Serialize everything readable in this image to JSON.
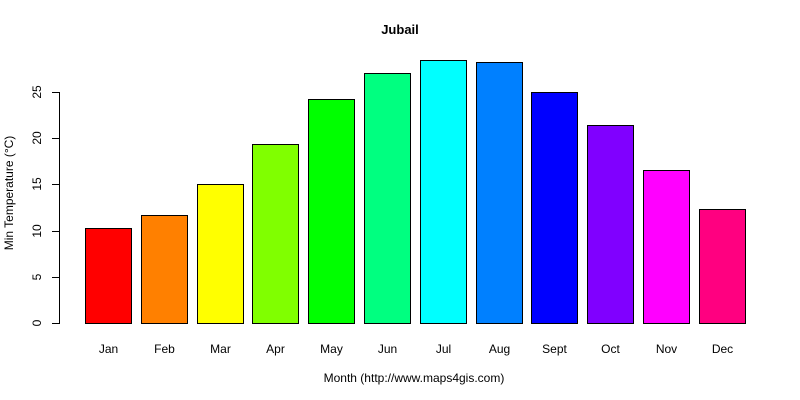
{
  "chart_data": {
    "type": "bar",
    "title": "Jubail",
    "xlabel": "Month (http://www.maps4gis.com)",
    "ylabel": "Min Temperature (°C)",
    "categories": [
      "Jan",
      "Feb",
      "Mar",
      "Apr",
      "May",
      "Jun",
      "Jul",
      "Aug",
      "Sept",
      "Oct",
      "Nov",
      "Dec"
    ],
    "values": [
      10.3,
      11.7,
      15.0,
      19.4,
      24.2,
      27.1,
      28.5,
      28.3,
      25.0,
      21.4,
      16.6,
      12.3
    ],
    "colors": [
      "#FF0000",
      "#FF8000",
      "#FFFF00",
      "#80FF00",
      "#00FF00",
      "#00FF80",
      "#00FFFF",
      "#0080FF",
      "#0000FF",
      "#8000FF",
      "#FF00FF",
      "#FF0080"
    ],
    "yticks": [
      0,
      5,
      10,
      15,
      20,
      25
    ],
    "ylim": [
      0,
      25
    ],
    "grid": false,
    "legend": null
  }
}
